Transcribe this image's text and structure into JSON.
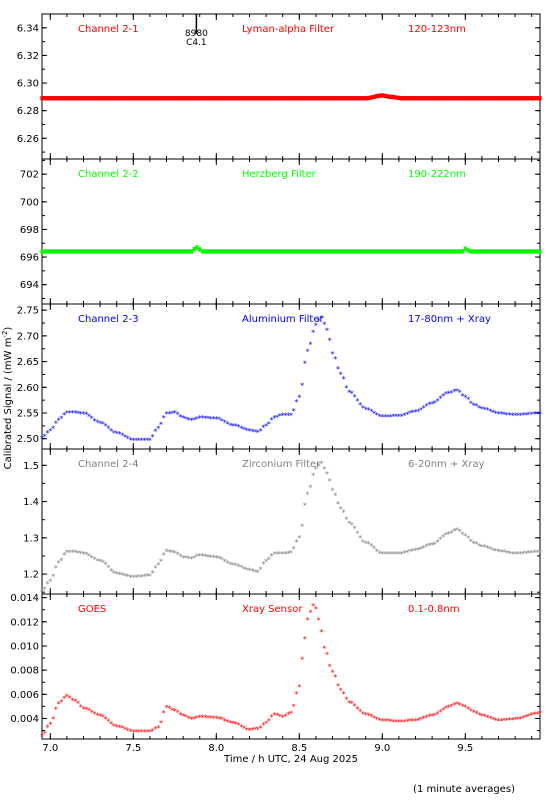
{
  "xlabel": "Time / h UTC, 24 Aug 2025",
  "ylabel": "Calibrated Signal / (mW m",
  "ylabel_sup": "-2",
  "ylabel_close": ")",
  "footnote": "(1 minute averages)",
  "x_ticks": [
    "7.0",
    "7.5",
    "8.0",
    "8.5",
    "9.0",
    "9.5"
  ],
  "x_range": [
    6.95,
    9.95
  ],
  "annotation": {
    "lines": [
      "8980",
      "C4.1"
    ],
    "x": 7.88,
    "panel": 0
  },
  "chart_data": [
    {
      "type": "scatter",
      "channel": "Channel 2-1",
      "filter": "Lyman-alpha Filter",
      "band": "120-123nm",
      "color": "#ff0000",
      "ylim": [
        6.245,
        6.35
      ],
      "y_ticks": [
        6.26,
        6.28,
        6.3,
        6.32,
        6.34
      ],
      "y_tick_labels": [
        "6.26",
        "6.28",
        "6.30",
        "6.32",
        "6.34"
      ],
      "x": [
        6.95,
        8.9,
        9.0,
        9.05,
        9.12,
        9.95
      ],
      "y": [
        6.289,
        6.289,
        6.291,
        6.29,
        6.289,
        6.289
      ]
    },
    {
      "type": "scatter",
      "channel": "Channel 2-2",
      "filter": "Herzberg Filter",
      "band": "190-222nm",
      "color": "#00ff00",
      "ylim": [
        692.6,
        703.1
      ],
      "y_ticks": [
        694,
        696,
        698,
        700,
        702
      ],
      "y_tick_labels": [
        "694",
        "696",
        "698",
        "700",
        "702"
      ],
      "x": [
        6.95,
        7.85,
        7.88,
        7.92,
        9.48,
        9.5,
        9.53,
        9.95
      ],
      "y": [
        696.4,
        696.4,
        696.7,
        696.4,
        696.4,
        696.6,
        696.4,
        696.4
      ]
    },
    {
      "type": "scatter",
      "channel": "Channel 2-3",
      "filter": "Aluminium Filter",
      "band": "17-80nm + Xray",
      "color": "#0000ff",
      "ylim": [
        2.48,
        2.762
      ],
      "y_ticks": [
        2.5,
        2.55,
        2.6,
        2.65,
        2.7,
        2.75
      ],
      "y_tick_labels": [
        "2.50",
        "2.55",
        "2.60",
        "2.65",
        "2.70",
        "2.75"
      ],
      "x": [
        6.95,
        7.0,
        7.05,
        7.1,
        7.15,
        7.2,
        7.3,
        7.4,
        7.5,
        7.6,
        7.65,
        7.7,
        7.75,
        7.8,
        7.85,
        7.9,
        8.0,
        8.1,
        8.2,
        8.25,
        8.3,
        8.35,
        8.4,
        8.45,
        8.5,
        8.55,
        8.6,
        8.63,
        8.67,
        8.7,
        8.75,
        8.8,
        8.9,
        9.0,
        9.1,
        9.2,
        9.3,
        9.4,
        9.45,
        9.5,
        9.55,
        9.6,
        9.7,
        9.8,
        9.95
      ],
      "y": [
        2.5,
        2.515,
        2.535,
        2.55,
        2.55,
        2.548,
        2.53,
        2.51,
        2.497,
        2.497,
        2.52,
        2.548,
        2.55,
        2.54,
        2.535,
        2.54,
        2.538,
        2.525,
        2.515,
        2.512,
        2.525,
        2.54,
        2.545,
        2.545,
        2.58,
        2.67,
        2.72,
        2.735,
        2.71,
        2.665,
        2.625,
        2.59,
        2.557,
        2.542,
        2.543,
        2.552,
        2.568,
        2.588,
        2.593,
        2.58,
        2.565,
        2.558,
        2.548,
        2.545,
        2.548
      ]
    },
    {
      "type": "scatter",
      "channel": "Channel 2-4",
      "filter": "Zirconium Filter",
      "band": "6-20nm + Xray",
      "color": "#808080",
      "ylim": [
        1.145,
        1.545
      ],
      "y_ticks": [
        1.2,
        1.3,
        1.4,
        1.5
      ],
      "y_tick_labels": [
        "1.2",
        "1.3",
        "1.4",
        "1.5"
      ],
      "x": [
        6.95,
        7.0,
        7.05,
        7.1,
        7.15,
        7.2,
        7.3,
        7.4,
        7.5,
        7.6,
        7.65,
        7.7,
        7.75,
        7.8,
        7.85,
        7.9,
        8.0,
        8.1,
        8.2,
        8.25,
        8.3,
        8.35,
        8.4,
        8.45,
        8.5,
        8.55,
        8.6,
        8.63,
        8.67,
        8.7,
        8.75,
        8.8,
        8.9,
        9.0,
        9.1,
        9.2,
        9.3,
        9.4,
        9.45,
        9.5,
        9.55,
        9.6,
        9.7,
        9.8,
        9.95
      ],
      "y": [
        1.15,
        1.18,
        1.23,
        1.26,
        1.26,
        1.255,
        1.235,
        1.2,
        1.19,
        1.195,
        1.225,
        1.262,
        1.258,
        1.245,
        1.242,
        1.25,
        1.245,
        1.225,
        1.21,
        1.205,
        1.235,
        1.255,
        1.255,
        1.258,
        1.3,
        1.42,
        1.49,
        1.505,
        1.475,
        1.43,
        1.38,
        1.34,
        1.285,
        1.255,
        1.255,
        1.265,
        1.28,
        1.31,
        1.322,
        1.305,
        1.285,
        1.275,
        1.262,
        1.255,
        1.26
      ]
    },
    {
      "type": "scatter",
      "channel": "GOES",
      "filter": "Xray Sensor",
      "band": "0.1-0.8nm",
      "color": "#ff0000",
      "ylim": [
        0.0023,
        0.0143
      ],
      "y_ticks": [
        0.004,
        0.006,
        0.008,
        0.01,
        0.012,
        0.014
      ],
      "y_tick_labels": [
        "0.004",
        "0.006",
        "0.008",
        "0.010",
        "0.012",
        "0.014"
      ],
      "x": [
        6.95,
        7.0,
        7.05,
        7.1,
        7.15,
        7.2,
        7.3,
        7.4,
        7.5,
        7.6,
        7.65,
        7.7,
        7.75,
        7.8,
        7.85,
        7.9,
        8.0,
        8.1,
        8.2,
        8.25,
        8.3,
        8.35,
        8.4,
        8.45,
        8.5,
        8.53,
        8.56,
        8.59,
        8.62,
        8.65,
        8.7,
        8.75,
        8.8,
        8.9,
        9.0,
        9.1,
        9.2,
        9.3,
        9.4,
        9.45,
        9.5,
        9.55,
        9.6,
        9.7,
        9.8,
        9.95
      ],
      "y": [
        0.0025,
        0.0035,
        0.0052,
        0.0058,
        0.0054,
        0.0048,
        0.0042,
        0.0033,
        0.0029,
        0.0029,
        0.0032,
        0.0049,
        0.0046,
        0.0042,
        0.0039,
        0.0041,
        0.004,
        0.0036,
        0.003,
        0.0031,
        0.0036,
        0.0043,
        0.0041,
        0.0044,
        0.0066,
        0.0105,
        0.0127,
        0.0134,
        0.0121,
        0.0098,
        0.0078,
        0.0063,
        0.0053,
        0.0043,
        0.0038,
        0.0037,
        0.0038,
        0.0042,
        0.0049,
        0.0052,
        0.0049,
        0.0045,
        0.0042,
        0.0038,
        0.0039,
        0.0044
      ]
    }
  ]
}
